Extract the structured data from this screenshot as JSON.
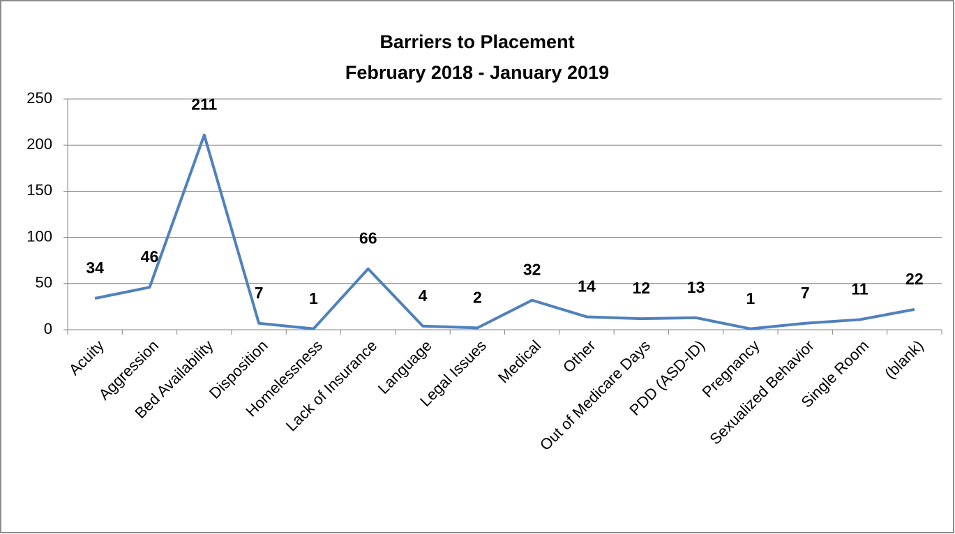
{
  "chart_data": {
    "type": "line",
    "title": "Barriers to Placement",
    "subtitle": "February 2018 - January 2019",
    "categories": [
      "Acuity",
      "Aggression",
      "Bed Availability",
      "Disposition",
      "Homelessness",
      "Lack of Insurance",
      "Language",
      "Legal Issues",
      "Medical",
      "Other",
      "Out of Medicare Days",
      "PDD (ASD-ID)",
      "Pregnancy",
      "Sexualized Behavior",
      "Single Room",
      "(blank)"
    ],
    "values": [
      34,
      46,
      211,
      7,
      1,
      66,
      4,
      2,
      32,
      14,
      12,
      13,
      1,
      7,
      11,
      22
    ],
    "color": "#4f81bd",
    "ylim": [
      0,
      250
    ],
    "yticks": [
      0,
      50,
      100,
      150,
      200,
      250
    ],
    "grid": true
  }
}
